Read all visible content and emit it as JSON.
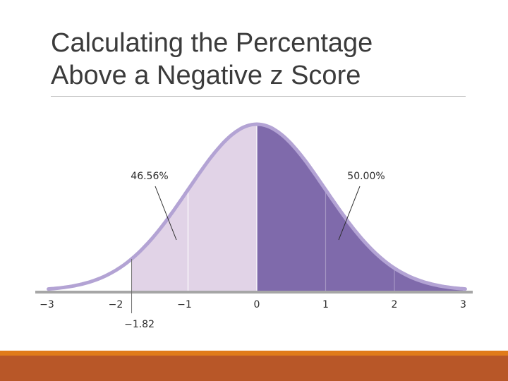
{
  "slide": {
    "title_line1": "Calculating the Percentage",
    "title_line2": "Above a Negative z Score"
  },
  "colors": {
    "curve_outline": "#b3a3d4",
    "light_fill": "#e1d3e7",
    "dark_fill": "#7f6aab",
    "axis": "#a6a6a6",
    "footer_gold": "#e07b1a",
    "footer_rust": "#b85728"
  },
  "chart_data": {
    "type": "area",
    "distribution": "standard normal",
    "xlim": [
      -3,
      3
    ],
    "ticks": [
      {
        "value": -3,
        "label": "−3"
      },
      {
        "value": -2,
        "label": "−2"
      },
      {
        "value": -1,
        "label": "−1"
      },
      {
        "value": 0,
        "label": "0"
      },
      {
        "value": 1,
        "label": "1"
      },
      {
        "value": 2,
        "label": "2"
      },
      {
        "value": 3,
        "label": "3"
      }
    ],
    "z_marker": {
      "value": -1.82,
      "label": "−1.82"
    },
    "shaded_regions": [
      {
        "from": -1.82,
        "to": 0,
        "percent_label": "46.56%",
        "shade": "light"
      },
      {
        "from": 0,
        "to": 3,
        "percent_label": "50.00%",
        "shade": "dark"
      }
    ]
  }
}
